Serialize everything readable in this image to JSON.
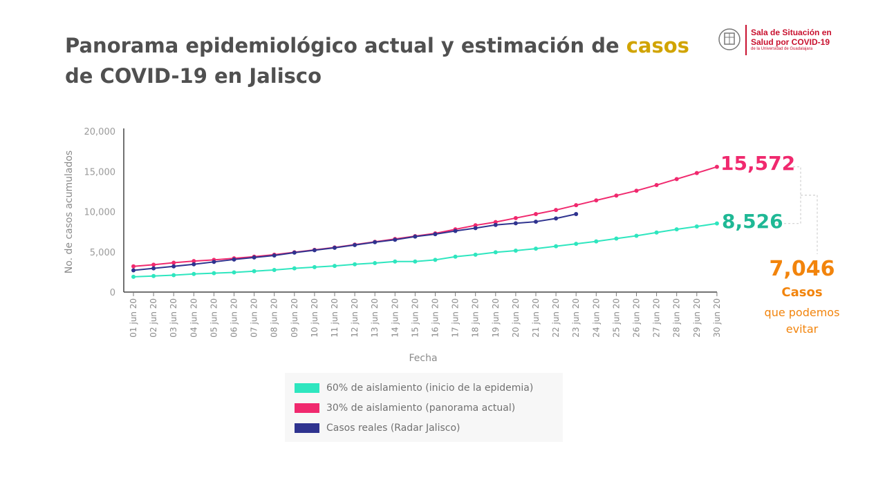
{
  "header": {
    "title_part1": "Panorama epidemiológico actual y estimación de ",
    "title_highlight": "casos",
    "title_part2": " de COVID-19 en Jalisco",
    "logo_line1": "Sala de Situación en",
    "logo_line2": "Salud por COVID-19",
    "logo_sub": "de la Universidad de Guadalajara"
  },
  "annotation": {
    "difference": "7,046",
    "casos": "Casos",
    "line1": "que podemos",
    "line2": "evitar"
  },
  "colors": {
    "teal": "#2ee6bf",
    "pink": "#f0296e",
    "navy": "#2f338f",
    "orange": "#f2840c",
    "title_highlight": "#d1a400",
    "logo": "#c8102e",
    "label_60": "#1fb895"
  },
  "chart_data": {
    "type": "line",
    "xlabel": "Fecha",
    "ylabel": "No. de casos acumulados",
    "ylim": [
      0,
      20000
    ],
    "yticks": [
      "0",
      "5,000",
      "10,000",
      "15,000",
      "20,000"
    ],
    "categories": [
      "01 jun 20",
      "02 jun 20",
      "03 jun 20",
      "04 jun 20",
      "05 jun 20",
      "06 jun 20",
      "07 jun 20",
      "08 jun 20",
      "09 jun 20",
      "10 jun 20",
      "11 jun 20",
      "12 jun 20",
      "13 jun 20",
      "14 jun 20",
      "15 jun 20",
      "16 jun 20",
      "17 jun 20",
      "18 jun 20",
      "19 jun 20",
      "20 jun 20",
      "21 jun 20",
      "22 jun 20",
      "23 jun 20",
      "24 jun 20",
      "25 jun 20",
      "26 jun 20",
      "27 jun 20",
      "28 jun 20",
      "29 jun 20",
      "30 jun 20"
    ],
    "series": [
      {
        "name": "60% de aislamiento (inicio de la epidemia)",
        "color": "#2ee6bf",
        "values": [
          1900,
          2000,
          2100,
          2250,
          2350,
          2450,
          2600,
          2750,
          2950,
          3100,
          3250,
          3450,
          3600,
          3800,
          3800,
          4000,
          4400,
          4650,
          4950,
          5150,
          5400,
          5700,
          6000,
          6300,
          6650,
          7000,
          7400,
          7800,
          8150,
          8526
        ],
        "end_label": "8,526"
      },
      {
        "name": "30% de aislamiento (panorama actual)",
        "color": "#f0296e",
        "values": [
          3200,
          3400,
          3650,
          3850,
          4000,
          4200,
          4400,
          4650,
          4950,
          5250,
          5550,
          5900,
          6250,
          6600,
          6950,
          7300,
          7800,
          8300,
          8700,
          9200,
          9700,
          10200,
          10800,
          11400,
          12000,
          12600,
          13300,
          14050,
          14800,
          15572
        ],
        "end_label": "15,572"
      },
      {
        "name": "Casos reales (Radar Jalisco)",
        "color": "#2f338f",
        "values": [
          2700,
          2950,
          3200,
          3450,
          3750,
          4050,
          4300,
          4550,
          4900,
          5200,
          5500,
          5850,
          6200,
          6500,
          6900,
          7200,
          7600,
          7950,
          8350,
          8550,
          8750,
          9150,
          9700,
          null,
          null,
          null,
          null,
          null,
          null,
          null
        ]
      }
    ],
    "grid": false,
    "legend_position": "bottom"
  }
}
